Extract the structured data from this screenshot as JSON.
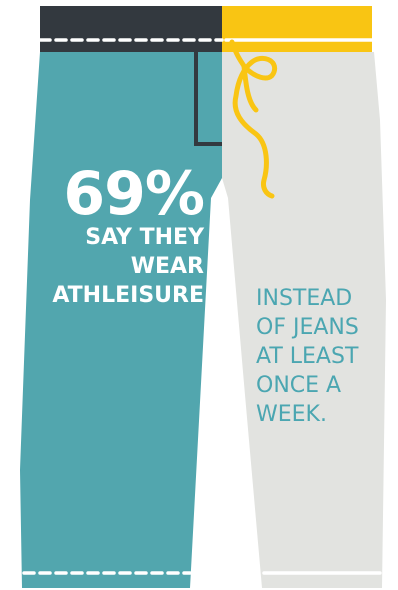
{
  "colors": {
    "left_leg": "#52a6ae",
    "right_leg": "#e2e3e0",
    "waistband_left": "#33393f",
    "waistband_right": "#f9c513",
    "drawstring": "#f9c513",
    "stitching": "#ffffff",
    "pocket_outline": "#33393f",
    "subtext": "#4ba6b1"
  },
  "illustration": {
    "subject": "pants-half-jeans-half-sweatpants",
    "icons": [
      "waistband",
      "pocket-seam",
      "drawstring",
      "hem-stitching"
    ]
  },
  "stat": {
    "value": "69%",
    "line1": "SAY THEY",
    "line2": "WEAR",
    "line3": "ATHLEISURE"
  },
  "subtext": {
    "line1": "INSTEAD",
    "line2": "OF JEANS",
    "line3": "AT LEAST",
    "line4": "ONCE A",
    "line5": "WEEK."
  }
}
